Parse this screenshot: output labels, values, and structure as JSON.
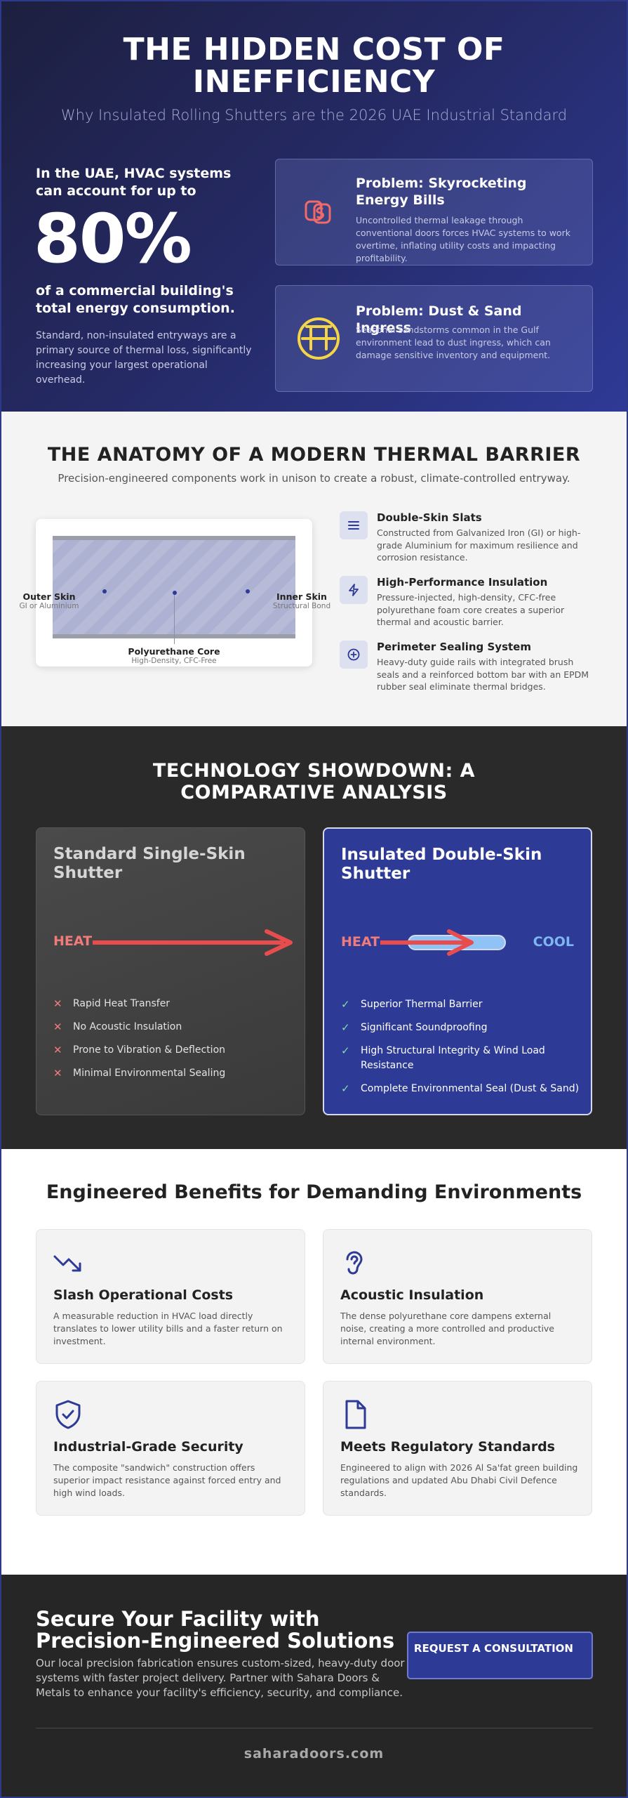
{
  "hero": {
    "title": "THE HIDDEN COST OF INEFFICIENCY",
    "subtitle": "Why Insulated Rolling Shutters are the 2026 UAE Industrial Standard",
    "stat_lead": "In the UAE, HVAC systems can account for up to",
    "stat_value": "80%",
    "stat_tail": "of a commercial building's total energy consumption.",
    "stat_note": "Standard, non-insulated entryways are a primary source of thermal loss, significantly increasing your largest operational overhead.",
    "problems": [
      {
        "title": "Problem: Skyrocketing Energy Bills",
        "text": "Uncontrolled thermal leakage through conventional doors forces HVAC systems to work overtime, inflating utility costs and impacting profitability.",
        "icon": "money-leak-icon",
        "color": "#f06a6a"
      },
      {
        "title": "Problem: Dust & Sand Ingress",
        "text": "Seasonal sandstorms common in the Gulf environment lead to dust ingress, which can damage sensitive inventory and equipment.",
        "icon": "sandstorm-icon",
        "color": "#f5d547"
      }
    ]
  },
  "anatomy": {
    "title": "THE ANATOMY OF A MODERN THERMAL BARRIER",
    "subtitle": "Precision-engineered components work in unison to create a robust, climate-controlled entryway.",
    "diagram": {
      "outer_label": "Outer Skin",
      "outer_sub": "GI or Aluminium",
      "inner_label": "Inner Skin",
      "inner_sub": "Structural Bond",
      "core_label": "Polyurethane Core",
      "core_sub": "High-Density, CFC-Free"
    },
    "features": [
      {
        "title": "Double-Skin Slats",
        "text": "Constructed from Galvanized Iron (GI) or high-grade Aluminium for maximum resilience and corrosion resistance.",
        "icon": "layers-icon"
      },
      {
        "title": "High-Performance Insulation",
        "text": "Pressure-injected, high-density, CFC-free polyurethane foam core creates a superior thermal and acoustic barrier.",
        "icon": "lightning-icon"
      },
      {
        "title": "Perimeter Sealing System",
        "text": "Heavy-duty guide rails with integrated brush seals and a reinforced bottom bar with an EPDM rubber seal eliminate thermal bridges.",
        "icon": "seal-plus-icon"
      }
    ]
  },
  "showdown": {
    "title": "TECHNOLOGY SHOWDOWN: A COMPARATIVE ANALYSIS",
    "standard": {
      "title": "Standard Single-Skin Shutter",
      "heat": "HEAT",
      "items": [
        "Rapid Heat Transfer",
        "No Acoustic Insulation",
        "Prone to Vibration & Deflection",
        "Minimal Environmental Sealing"
      ]
    },
    "insulated": {
      "title": "Insulated Double-Skin Shutter",
      "heat": "HEAT",
      "cool": "COOL",
      "items": [
        "Superior Thermal Barrier",
        "Significant Soundproofing",
        "High Structural Integrity & Wind Load Resistance",
        "Complete Environmental Seal (Dust & Sand)"
      ]
    },
    "colors": {
      "heat": "#e84c4c",
      "cool": "#8fc3f5",
      "check": "#7fe0a8"
    }
  },
  "benefits": {
    "title": "Engineered Benefits for Demanding Environments",
    "cards": [
      {
        "title": "Slash Operational Costs",
        "text": "A measurable reduction in HVAC load directly translates to lower utility bills and a faster return on investment.",
        "icon": "trending-down-icon"
      },
      {
        "title": "Acoustic Insulation",
        "text": "The dense polyurethane core dampens external noise, creating a more controlled and productive internal environment.",
        "icon": "ear-icon"
      },
      {
        "title": "Industrial-Grade Security",
        "text": "The composite \"sandwich\" construction offers superior impact resistance against forced entry and high wind loads.",
        "icon": "shield-check-icon"
      },
      {
        "title": "Meets Regulatory Standards",
        "text": "Engineered to align with 2026 Al Sa'fat green building regulations and updated Abu Dhabi Civil Defence standards.",
        "icon": "document-icon"
      }
    ]
  },
  "cta": {
    "title": "Secure Your Facility with Precision-Engineered Solutions",
    "text": "Our local precision fabrication ensures custom-sized, heavy-duty door systems with faster project delivery. Partner with Sahara Doors & Metals to enhance your facility's efficiency, security, and compliance.",
    "button": "REQUEST A CONSULTATION",
    "site": "saharadoors.com"
  },
  "colors": {
    "brand_blue": "#2d3a96",
    "dark_bg": "#2a2a2a",
    "light_bg": "#f4f4f4"
  }
}
